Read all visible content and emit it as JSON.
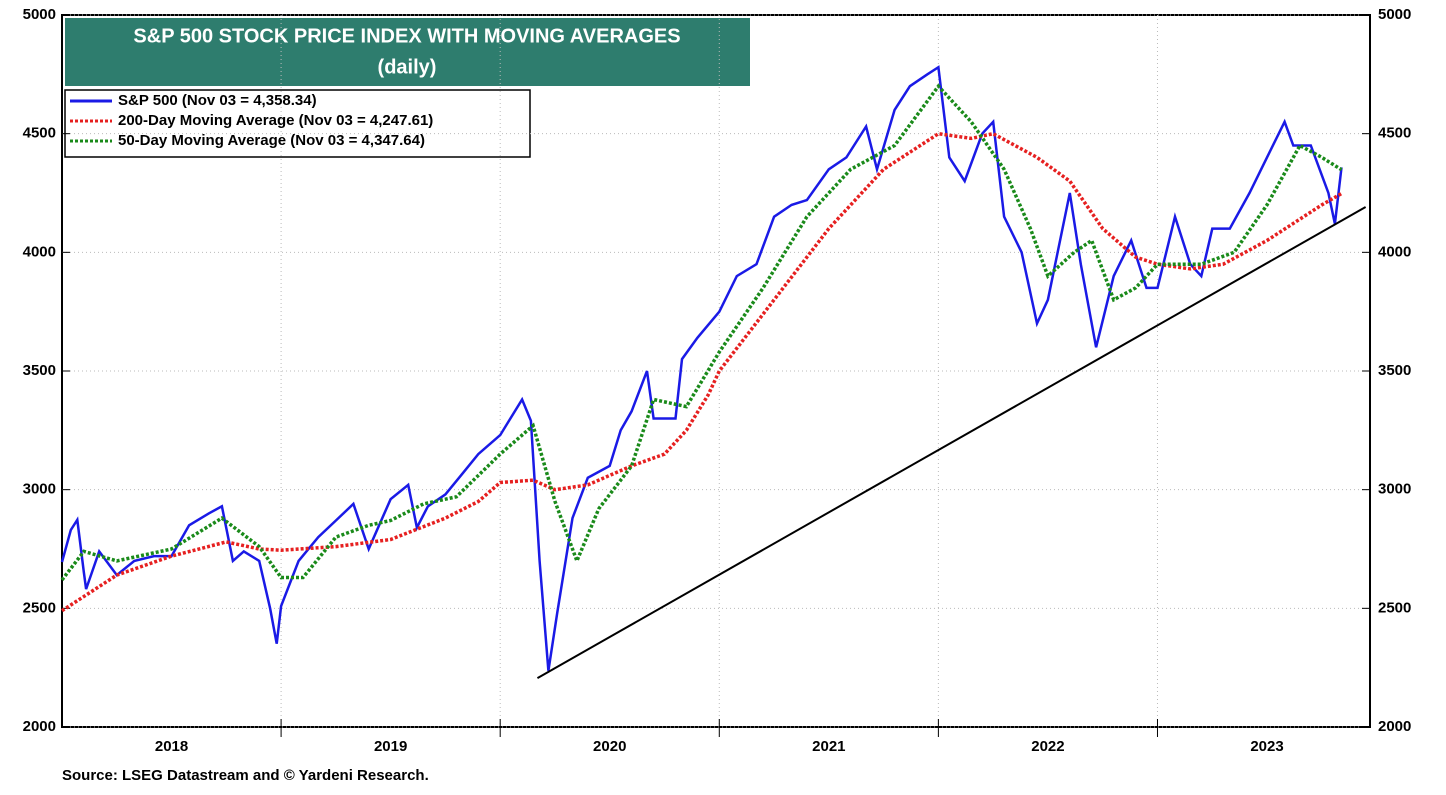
{
  "chart_data": {
    "type": "line",
    "title": "S&P 500 STOCK PRICE INDEX WITH MOVING AVERAGES",
    "subtitle": "(daily)",
    "source": "Source: LSEG Datastream and © Yardeni Research.",
    "xlim": [
      2018,
      2023.97
    ],
    "xgrid": [
      2019,
      2020,
      2021,
      2022,
      2023
    ],
    "xticks": [
      {
        "value": 2018.5,
        "label": "2018"
      },
      {
        "value": 2019.5,
        "label": "2019"
      },
      {
        "value": 2020.5,
        "label": "2020"
      },
      {
        "value": 2021.5,
        "label": "2021"
      },
      {
        "value": 2022.5,
        "label": "2022"
      },
      {
        "value": 2023.5,
        "label": "2023"
      }
    ],
    "ylim": [
      2000,
      5000
    ],
    "yticks": [
      2000,
      2500,
      3000,
      3500,
      4000,
      4500,
      5000
    ],
    "grid": true,
    "legend": "upper left",
    "series": [
      {
        "name": "S&P 500 (Nov 03 = 4,358.34)",
        "color": "#1a1ae6",
        "style": "solid",
        "x": [
          2018.0,
          2018.04,
          2018.07,
          2018.1,
          2018.11,
          2018.17,
          2018.25,
          2018.33,
          2018.42,
          2018.5,
          2018.58,
          2018.67,
          2018.73,
          2018.78,
          2018.83,
          2018.9,
          2018.95,
          2018.98,
          2019.0,
          2019.08,
          2019.17,
          2019.25,
          2019.33,
          2019.4,
          2019.5,
          2019.58,
          2019.62,
          2019.67,
          2019.75,
          2019.83,
          2019.9,
          2020.0,
          2020.1,
          2020.14,
          2020.18,
          2020.22,
          2020.26,
          2020.33,
          2020.4,
          2020.5,
          2020.55,
          2020.6,
          2020.67,
          2020.7,
          2020.8,
          2020.83,
          2020.9,
          2021.0,
          2021.08,
          2021.17,
          2021.25,
          2021.33,
          2021.4,
          2021.5,
          2021.58,
          2021.67,
          2021.72,
          2021.8,
          2021.87,
          2021.95,
          2022.0,
          2022.05,
          2022.12,
          2022.2,
          2022.25,
          2022.3,
          2022.38,
          2022.45,
          2022.5,
          2022.6,
          2022.65,
          2022.72,
          2022.8,
          2022.88,
          2022.95,
          2023.0,
          2023.08,
          2023.15,
          2023.2,
          2023.25,
          2023.33,
          2023.42,
          2023.5,
          2023.58,
          2023.62,
          2023.7,
          2023.78,
          2023.81,
          2023.84
        ],
        "values": [
          2695,
          2830,
          2873,
          2650,
          2581,
          2740,
          2640,
          2700,
          2720,
          2720,
          2850,
          2900,
          2930,
          2700,
          2740,
          2700,
          2500,
          2351,
          2510,
          2700,
          2800,
          2870,
          2940,
          2750,
          2960,
          3020,
          2840,
          2930,
          2980,
          3070,
          3150,
          3230,
          3380,
          3290,
          2700,
          2237,
          2480,
          2880,
          3050,
          3100,
          3250,
          3330,
          3500,
          3300,
          3300,
          3550,
          3640,
          3750,
          3900,
          3950,
          4150,
          4200,
          4220,
          4350,
          4400,
          4530,
          4350,
          4600,
          4700,
          4750,
          4780,
          4400,
          4300,
          4500,
          4550,
          4150,
          4000,
          3700,
          3800,
          4250,
          3950,
          3600,
          3900,
          4050,
          3850,
          3850,
          4150,
          3950,
          3900,
          4100,
          4100,
          4250,
          4400,
          4550,
          4450,
          4450,
          4250,
          4120,
          4358
        ]
      },
      {
        "name": "200-Day Moving Average (Nov 03 = 4,247.61)",
        "color": "#e62020",
        "style": "dotted",
        "x": [
          2018.0,
          2018.25,
          2018.5,
          2018.75,
          2018.9,
          2019.0,
          2019.25,
          2019.5,
          2019.75,
          2019.9,
          2020.0,
          2020.15,
          2020.25,
          2020.4,
          2020.6,
          2020.75,
          2020.85,
          2020.95,
          2021.0,
          2021.25,
          2021.5,
          2021.75,
          2022.0,
          2022.15,
          2022.25,
          2022.45,
          2022.6,
          2022.75,
          2022.9,
          2023.0,
          2023.15,
          2023.3,
          2023.5,
          2023.75,
          2023.84
        ],
        "values": [
          2490,
          2640,
          2720,
          2780,
          2750,
          2745,
          2760,
          2790,
          2880,
          2950,
          3030,
          3040,
          3000,
          3020,
          3100,
          3150,
          3250,
          3400,
          3500,
          3800,
          4100,
          4350,
          4500,
          4480,
          4500,
          4400,
          4300,
          4100,
          3980,
          3950,
          3930,
          3950,
          4050,
          4200,
          4248
        ]
      },
      {
        "name": "50-Day Moving Average (Nov 03 = 4,347.64)",
        "color": "#1a8a1a",
        "style": "dotted",
        "x": [
          2018.0,
          2018.1,
          2018.25,
          2018.5,
          2018.73,
          2018.9,
          2019.0,
          2019.1,
          2019.25,
          2019.4,
          2019.5,
          2019.65,
          2019.8,
          2020.0,
          2020.15,
          2020.25,
          2020.35,
          2020.45,
          2020.6,
          2020.7,
          2020.85,
          2021.0,
          2021.2,
          2021.4,
          2021.6,
          2021.8,
          2021.92,
          2022.0,
          2022.15,
          2022.3,
          2022.42,
          2022.5,
          2022.62,
          2022.7,
          2022.8,
          2022.9,
          2023.0,
          2023.2,
          2023.35,
          2023.5,
          2023.65,
          2023.75,
          2023.84
        ],
        "values": [
          2620,
          2740,
          2700,
          2750,
          2880,
          2760,
          2630,
          2630,
          2800,
          2850,
          2870,
          2940,
          2970,
          3150,
          3270,
          2950,
          2700,
          2920,
          3100,
          3380,
          3350,
          3580,
          3850,
          4150,
          4350,
          4450,
          4600,
          4700,
          4550,
          4350,
          4100,
          3900,
          4000,
          4050,
          3800,
          3850,
          3950,
          3950,
          4000,
          4200,
          4450,
          4400,
          4348
        ]
      }
    ],
    "trendline": {
      "color": "#000000",
      "x": [
        2020.17,
        2023.95
      ],
      "values": [
        2206,
        4191
      ]
    }
  }
}
